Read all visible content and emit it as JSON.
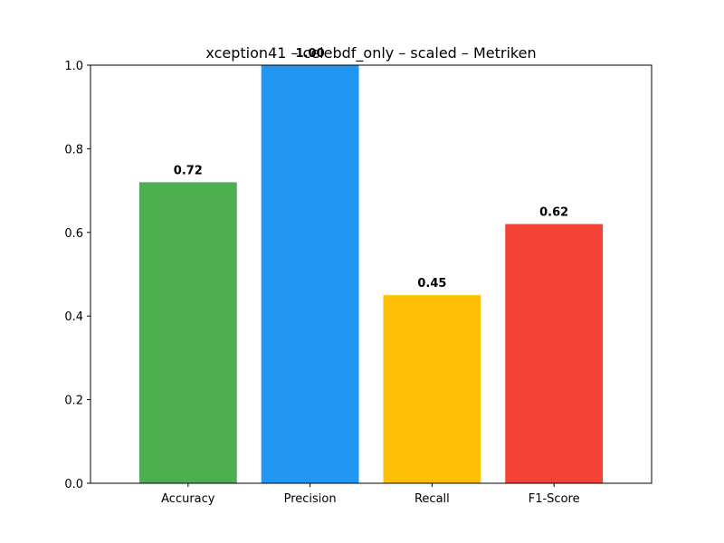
{
  "chart_data": {
    "type": "bar",
    "title": "xception41 – celebdf_only – scaled – Metriken",
    "xlabel": "",
    "ylabel": "",
    "categories": [
      "Accuracy",
      "Precision",
      "Recall",
      "F1-Score"
    ],
    "values": [
      0.72,
      1.0,
      0.45,
      0.62
    ],
    "value_labels": [
      "0.72",
      "1.00",
      "0.45",
      "0.62"
    ],
    "colors": [
      "#4caf50",
      "#2196f3",
      "#ffc107",
      "#f44336"
    ],
    "ylim": [
      0,
      1.0
    ],
    "yticks": [
      0.0,
      0.2,
      0.4,
      0.6,
      0.8,
      1.0
    ],
    "ytick_labels": [
      "0.0",
      "0.2",
      "0.4",
      "0.6",
      "0.8",
      "1.0"
    ],
    "grid": false,
    "legend": "none"
  }
}
